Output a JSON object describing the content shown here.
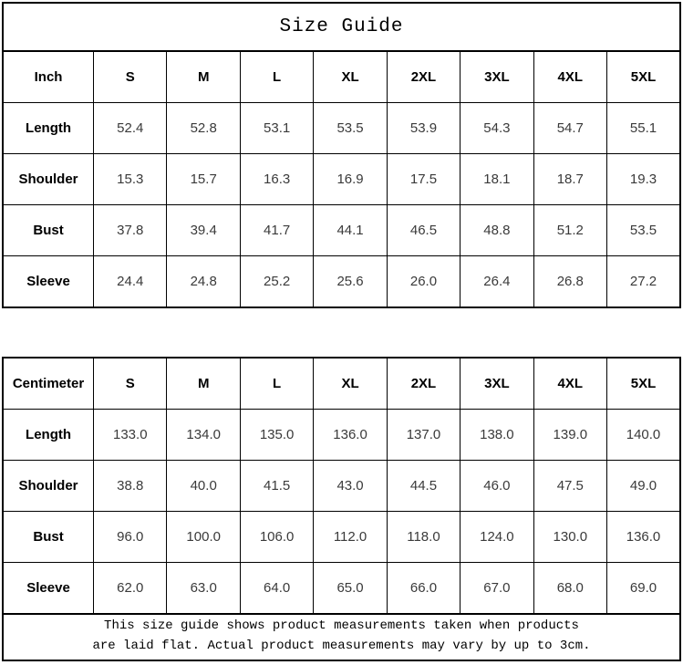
{
  "title": "Size Guide",
  "tables": [
    {
      "unit_label": "Inch",
      "columns": [
        "S",
        "M",
        "L",
        "XL",
        "2XL",
        "3XL",
        "4XL",
        "5XL"
      ],
      "rows": [
        {
          "label": "Length",
          "values": [
            "52.4",
            "52.8",
            "53.1",
            "53.5",
            "53.9",
            "54.3",
            "54.7",
            "55.1"
          ]
        },
        {
          "label": "Shoulder",
          "values": [
            "15.3",
            "15.7",
            "16.3",
            "16.9",
            "17.5",
            "18.1",
            "18.7",
            "19.3"
          ]
        },
        {
          "label": "Bust",
          "values": [
            "37.8",
            "39.4",
            "41.7",
            "44.1",
            "46.5",
            "48.8",
            "51.2",
            "53.5"
          ]
        },
        {
          "label": "Sleeve",
          "values": [
            "24.4",
            "24.8",
            "25.2",
            "25.6",
            "26.0",
            "26.4",
            "26.8",
            "27.2"
          ]
        }
      ]
    },
    {
      "unit_label": "Centimeter",
      "columns": [
        "S",
        "M",
        "L",
        "XL",
        "2XL",
        "3XL",
        "4XL",
        "5XL"
      ],
      "rows": [
        {
          "label": "Length",
          "values": [
            "133.0",
            "134.0",
            "135.0",
            "136.0",
            "137.0",
            "138.0",
            "139.0",
            "140.0"
          ]
        },
        {
          "label": "Shoulder",
          "values": [
            "38.8",
            "40.0",
            "41.5",
            "43.0",
            "44.5",
            "46.0",
            "47.5",
            "49.0"
          ]
        },
        {
          "label": "Bust",
          "values": [
            "96.0",
            "100.0",
            "106.0",
            "112.0",
            "118.0",
            "124.0",
            "130.0",
            "136.0"
          ]
        },
        {
          "label": "Sleeve",
          "values": [
            "62.0",
            "63.0",
            "64.0",
            "65.0",
            "66.0",
            "67.0",
            "68.0",
            "69.0"
          ]
        }
      ]
    }
  ],
  "footer": {
    "lines": [
      "This size guide shows product measurements taken when products",
      "are laid flat. Actual product measurements may vary by up to 3cm."
    ]
  },
  "colors": {
    "border": "#000000",
    "label_text": "#000000",
    "value_text": "#3a3a3a",
    "background": "#ffffff"
  }
}
